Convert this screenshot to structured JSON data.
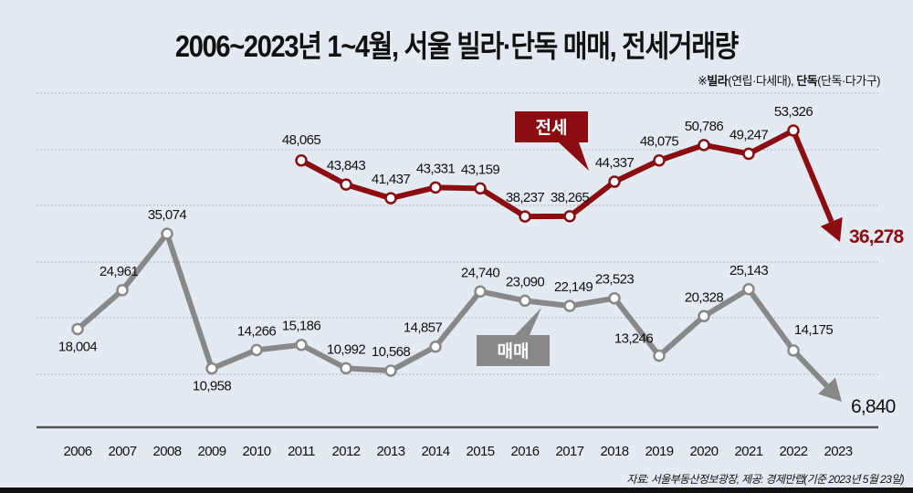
{
  "title": "2006~2023년 1~4월, 서울 빌라·단독 매매, 전세거래량",
  "note": {
    "prefix": "※",
    "villa_bold": "빌라",
    "villa_detail": "(연립·다세대), ",
    "detached_bold": "단독",
    "detached_detail": "(단독·다가구)"
  },
  "legend": {
    "jeonse": "전세",
    "maemae": "매매"
  },
  "colors": {
    "jeonse": "#8b0d12",
    "maemae": "#888888",
    "background": "#e4eaf1",
    "gridline": "#9aa3ad",
    "axis": "#555555"
  },
  "source": "자료: 서울부동산정보광장, 제공: 경제만랩(기준 2023년 5월 23일)",
  "chart_data": {
    "type": "line",
    "title": "2006~2023년 1~4월, 서울 빌라·단독 매매, 전세거래량",
    "xlabel": "",
    "ylabel": "",
    "grid": true,
    "legend_position": "inline callouts",
    "categories": [
      "2006",
      "2007",
      "2008",
      "2009",
      "2010",
      "2011",
      "2012",
      "2013",
      "2014",
      "2015",
      "2016",
      "2017",
      "2018",
      "2019",
      "2020",
      "2021",
      "2022",
      "2023"
    ],
    "series": [
      {
        "name": "전세",
        "values": [
          null,
          null,
          null,
          null,
          null,
          48065,
          43843,
          41437,
          43331,
          43159,
          38237,
          38265,
          44337,
          48075,
          50786,
          49247,
          53326,
          36278
        ],
        "labels": [
          "",
          "",
          "",
          "",
          "",
          "48,065",
          "43,843",
          "41,437",
          "43,331",
          "43,159",
          "38,237",
          "38,265",
          "44,337",
          "48,075",
          "50,786",
          "49,247",
          "53,326",
          "36,278"
        ]
      },
      {
        "name": "매매",
        "values": [
          18004,
          24961,
          35074,
          10958,
          14266,
          15186,
          10992,
          10568,
          14857,
          24740,
          23090,
          22149,
          23523,
          13246,
          20328,
          25143,
          14175,
          6840
        ],
        "labels": [
          "18,004",
          "24,961",
          "35,074",
          "10,958",
          "14,266",
          "15,186",
          "10,992",
          "10,568",
          "14,857",
          "24,740",
          "23,090",
          "22,149",
          "23,523",
          "13,246",
          "20,328",
          "25,143",
          "14,175",
          "6,840"
        ]
      }
    ],
    "annotations": [
      "※빌라(연립·다세대), 단독(단독·다가구)",
      "2023 values shown with downward arrows"
    ]
  }
}
